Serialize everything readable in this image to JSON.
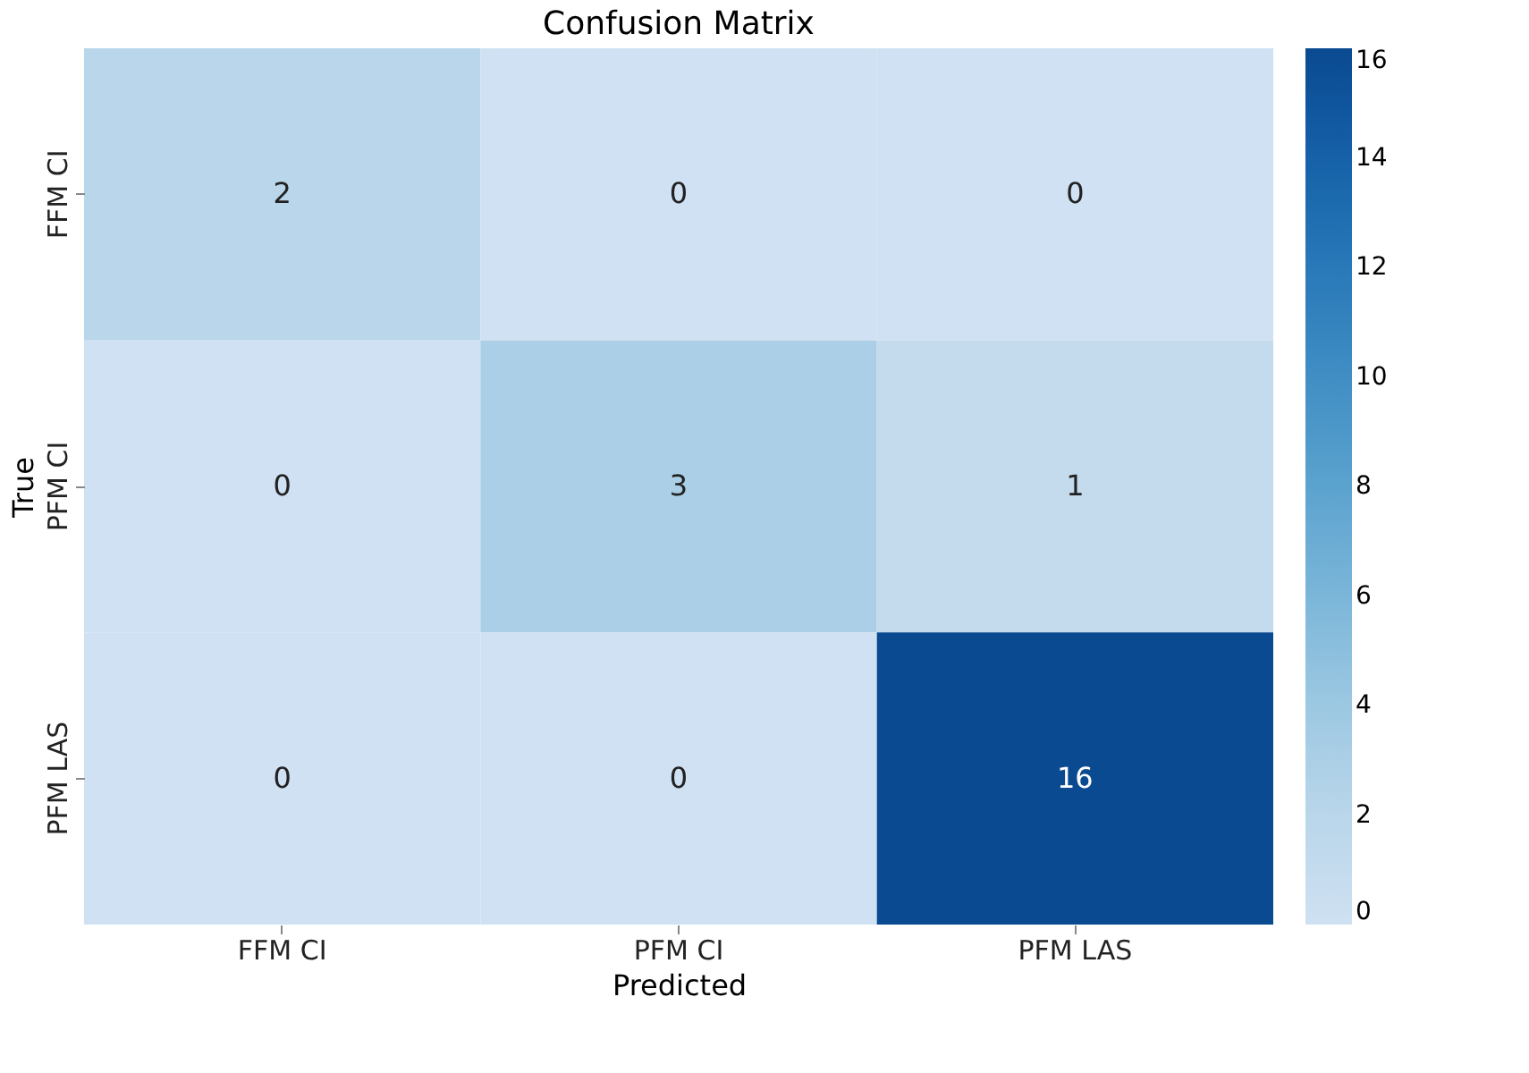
{
  "chart_data": {
    "type": "heatmap",
    "title": "Confusion Matrix",
    "xlabel": "Predicted",
    "ylabel": "True",
    "categories": [
      "FFM CI",
      "PFM CI",
      "PFM LAS"
    ],
    "y_categories": [
      "FFM CI",
      "PFM CI",
      "PFM LAS"
    ],
    "cells": [
      [
        2,
        0,
        0
      ],
      [
        0,
        3,
        1
      ],
      [
        0,
        0,
        16
      ]
    ],
    "clim": [
      0,
      16
    ],
    "cticks": [
      0,
      2,
      4,
      6,
      8,
      10,
      12,
      14,
      16
    ],
    "data_labels": true
  }
}
